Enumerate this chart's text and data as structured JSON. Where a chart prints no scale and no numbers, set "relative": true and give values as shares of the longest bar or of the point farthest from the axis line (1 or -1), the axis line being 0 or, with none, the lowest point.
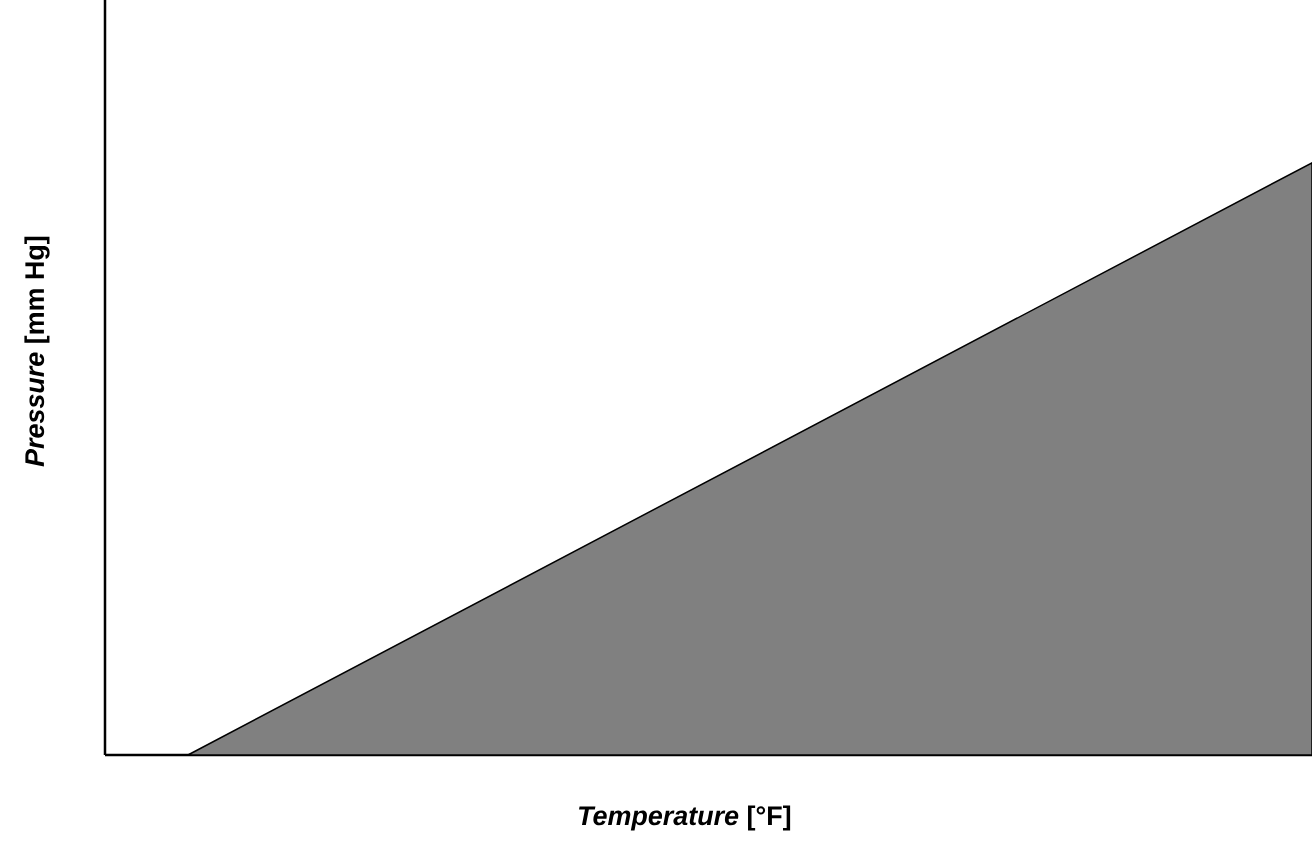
{
  "chart_data": {
    "type": "area",
    "relative": true,
    "xlabel": "*Temperature* [°F]",
    "ylabel": "*Pressure* [mm Hg]",
    "categories": [
      null,
      null
    ],
    "values": [
      0,
      1
    ],
    "color": "#808080"
  }
}
